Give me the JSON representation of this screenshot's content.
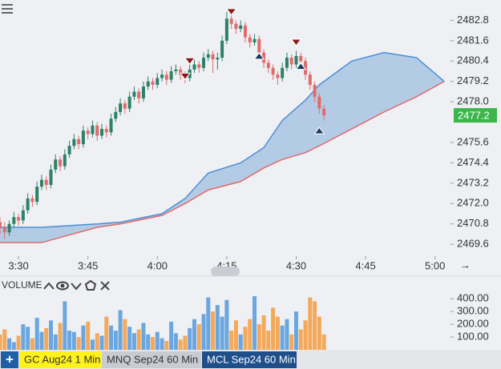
{
  "chart_data": [
    {
      "type": "candlestick",
      "x": [
        206,
        207,
        208,
        209,
        210,
        211,
        212,
        213,
        214,
        215,
        216,
        217,
        218,
        219,
        220,
        221,
        222,
        223,
        224,
        225,
        226,
        227,
        228,
        229,
        230,
        231,
        232,
        233,
        234,
        235,
        236,
        237,
        238,
        239,
        240,
        241,
        242,
        243,
        244,
        245,
        246,
        247,
        248,
        249,
        250,
        251,
        252,
        253,
        254,
        255,
        256,
        257,
        258,
        259,
        260,
        261,
        262,
        263,
        264,
        265,
        266,
        267,
        268,
        269,
        270,
        271,
        272,
        273,
        274,
        275,
        276
      ],
      "open": [
        2470.9,
        2470.6,
        2470.3,
        2470.8,
        2471.2,
        2471.0,
        2471.6,
        2472.3,
        2472.1,
        2473.0,
        2473.4,
        2473.1,
        2474.0,
        2474.6,
        2474.2,
        2474.9,
        2475.4,
        2475.8,
        2475.5,
        2476.3,
        2476.1,
        2476.6,
        2476.0,
        2476.4,
        2476.2,
        2477.0,
        2477.4,
        2477.9,
        2477.6,
        2478.3,
        2478.6,
        2478.2,
        2478.9,
        2479.2,
        2479.0,
        2479.4,
        2479.6,
        2479.3,
        2479.8,
        2479.9,
        2479.6,
        2479.4,
        2479.9,
        2480.2,
        2480.0,
        2480.6,
        2480.8,
        2480.5,
        2480.6,
        2481.6,
        2482.9,
        2482.6,
        2482.3,
        2482.5,
        2481.8,
        2481.5,
        2481.7,
        2480.9,
        2480.3,
        2480.0,
        2479.6,
        2479.4,
        2480.0,
        2480.6,
        2480.2,
        2480.7,
        2480.4,
        2479.6,
        2479.0,
        2478.3,
        2477.6
      ],
      "high": [
        2471.2,
        2470.9,
        2471.0,
        2471.5,
        2471.4,
        2471.9,
        2472.6,
        2472.5,
        2473.3,
        2473.7,
        2473.6,
        2474.3,
        2474.9,
        2474.8,
        2475.2,
        2475.7,
        2476.1,
        2476.0,
        2476.6,
        2476.5,
        2476.9,
        2476.8,
        2476.7,
        2476.6,
        2477.3,
        2477.7,
        2478.2,
        2478.1,
        2478.6,
        2478.9,
        2478.8,
        2479.2,
        2479.5,
        2479.4,
        2479.7,
        2479.9,
        2479.8,
        2480.1,
        2480.2,
        2480.1,
        2479.8,
        2480.2,
        2480.5,
        2480.4,
        2480.9,
        2481.1,
        2481.0,
        2480.9,
        2481.9,
        2483.3,
        2483.2,
        2482.8,
        2482.8,
        2482.7,
        2482.0,
        2482.0,
        2481.9,
        2481.1,
        2480.5,
        2480.2,
        2479.8,
        2480.3,
        2480.9,
        2480.8,
        2481.0,
        2480.9,
        2480.6,
        2479.8,
        2479.2,
        2478.5,
        2477.8
      ],
      "low": [
        2470.2,
        2469.9,
        2470.1,
        2470.6,
        2470.7,
        2470.8,
        2471.4,
        2471.8,
        2471.9,
        2472.8,
        2472.8,
        2472.9,
        2473.8,
        2473.9,
        2474.0,
        2474.7,
        2475.2,
        2475.2,
        2475.3,
        2475.8,
        2475.9,
        2475.7,
        2475.8,
        2475.9,
        2476.0,
        2476.8,
        2477.2,
        2477.3,
        2477.4,
        2478.1,
        2477.9,
        2478.0,
        2478.7,
        2478.7,
        2478.8,
        2479.2,
        2479.0,
        2479.1,
        2479.6,
        2479.3,
        2479.1,
        2479.2,
        2479.7,
        2479.7,
        2479.8,
        2480.4,
        2479.7,
        2479.9,
        2480.4,
        2481.4,
        2482.3,
        2482.0,
        2482.1,
        2481.5,
        2481.2,
        2481.3,
        2480.6,
        2480.0,
        2479.7,
        2479.3,
        2479.0,
        2479.2,
        2479.8,
        2479.9,
        2480.0,
        2480.1,
        2479.3,
        2478.7,
        2478.0,
        2477.3,
        2476.9
      ],
      "close": [
        2470.6,
        2470.3,
        2470.8,
        2471.2,
        2471.0,
        2471.6,
        2472.3,
        2472.1,
        2473.0,
        2473.4,
        2473.1,
        2474.0,
        2474.6,
        2474.2,
        2474.9,
        2475.4,
        2475.8,
        2475.5,
        2476.3,
        2476.1,
        2476.6,
        2476.0,
        2476.4,
        2476.2,
        2477.0,
        2477.4,
        2477.9,
        2477.6,
        2478.3,
        2478.6,
        2478.2,
        2478.9,
        2479.2,
        2479.0,
        2479.4,
        2479.6,
        2479.3,
        2479.8,
        2479.9,
        2479.6,
        2479.4,
        2479.9,
        2480.2,
        2480.0,
        2480.6,
        2480.8,
        2480.5,
        2480.6,
        2481.6,
        2482.9,
        2482.6,
        2482.3,
        2482.5,
        2481.8,
        2481.5,
        2481.7,
        2480.9,
        2480.3,
        2480.0,
        2479.6,
        2479.4,
        2480.0,
        2480.6,
        2480.2,
        2480.7,
        2480.4,
        2479.6,
        2479.0,
        2478.3,
        2477.6,
        2477.2
      ],
      "up_color": "#2e8068",
      "down_color": "#e06b6b",
      "xlim": [
        206,
        303
      ],
      "xticks": [
        {
          "value": 210,
          "label": "3:30"
        },
        {
          "value": 225,
          "label": "3:45"
        },
        {
          "value": 240,
          "label": "4:00"
        },
        {
          "value": 255,
          "label": "4:15"
        },
        {
          "value": 270,
          "label": "4:30"
        },
        {
          "value": 285,
          "label": "4:45"
        },
        {
          "value": 300,
          "label": "5:00"
        }
      ],
      "ylim": [
        2468.9,
        2484.0
      ],
      "yticks": [
        2469.6,
        2470.8,
        {
          "value": 2472,
          "label": "2472.0"
        },
        2473.2,
        2474.4,
        2475.6,
        {
          "value": 2478,
          "label": "2478.0"
        },
        2479.2,
        2480.4,
        2481.6,
        2482.8
      ],
      "cloud": {
        "x": [
          206,
          215,
          227,
          232,
          241,
          246,
          251,
          258,
          263,
          267,
          272,
          275,
          282,
          289,
          296,
          302
        ],
        "upper": {
          "color": "#4a8fd6",
          "values": [
            2470.6,
            2470.6,
            2470.8,
            2470.9,
            2471.4,
            2472.3,
            2473.8,
            2474.4,
            2475.3,
            2476.9,
            2478.1,
            2479.0,
            2480.4,
            2480.9,
            2480.6,
            2479.2
          ]
        },
        "lower": {
          "color": "#e06b6b",
          "values": [
            2469.7,
            2469.7,
            2470.6,
            2470.8,
            2471.3,
            2472.0,
            2472.8,
            2473.3,
            2474.1,
            2474.6,
            2475.0,
            2475.4,
            2476.4,
            2477.4,
            2478.3,
            2479.2
          ]
        }
      },
      "sell_signals": {
        "color": "#8b1a1a",
        "x": [
          246,
          247,
          256,
          270
        ],
        "values": [
          2479.5,
          2480.4,
          2483.3,
          2481.5
        ]
      },
      "buy_signals": {
        "color": "#1f3a5f",
        "x": [
          262,
          271,
          275
        ],
        "values": [
          2480.7,
          2480.1,
          2476.3
        ]
      },
      "last_price": {
        "value": 2477.2,
        "color": "#3cb54a"
      }
    },
    {
      "type": "bar",
      "label": "VOLUME",
      "values": [
        120,
        160,
        90,
        60,
        110,
        200,
        180,
        90,
        250,
        140,
        170,
        230,
        120,
        210,
        380,
        150,
        140,
        100,
        190,
        220,
        80,
        130,
        110,
        260,
        190,
        150,
        310,
        240,
        180,
        130,
        160,
        210,
        120,
        100,
        140,
        90,
        70,
        220,
        130,
        80,
        110,
        170,
        240,
        200,
        280,
        410,
        300,
        350,
        260,
        390,
        150,
        230,
        120,
        180,
        240,
        420,
        200,
        270,
        150,
        330,
        260,
        190,
        240,
        120,
        300,
        160,
        230,
        410,
        380,
        260,
        120
      ],
      "up_color": "#6aa6e0",
      "down_color": "#f4a85a",
      "ylim": [
        0,
        470
      ],
      "yticks": [
        {
          "value": 100,
          "label": "100.00"
        },
        {
          "value": 200,
          "label": "200.00"
        },
        {
          "value": 300,
          "label": "300.00"
        },
        {
          "value": 400,
          "label": "400.00"
        }
      ]
    }
  ],
  "tabs": [
    "GC Aug24 1 Min",
    "MNQ Sep24 60 Min",
    "MCL Sep24 60 Min"
  ]
}
